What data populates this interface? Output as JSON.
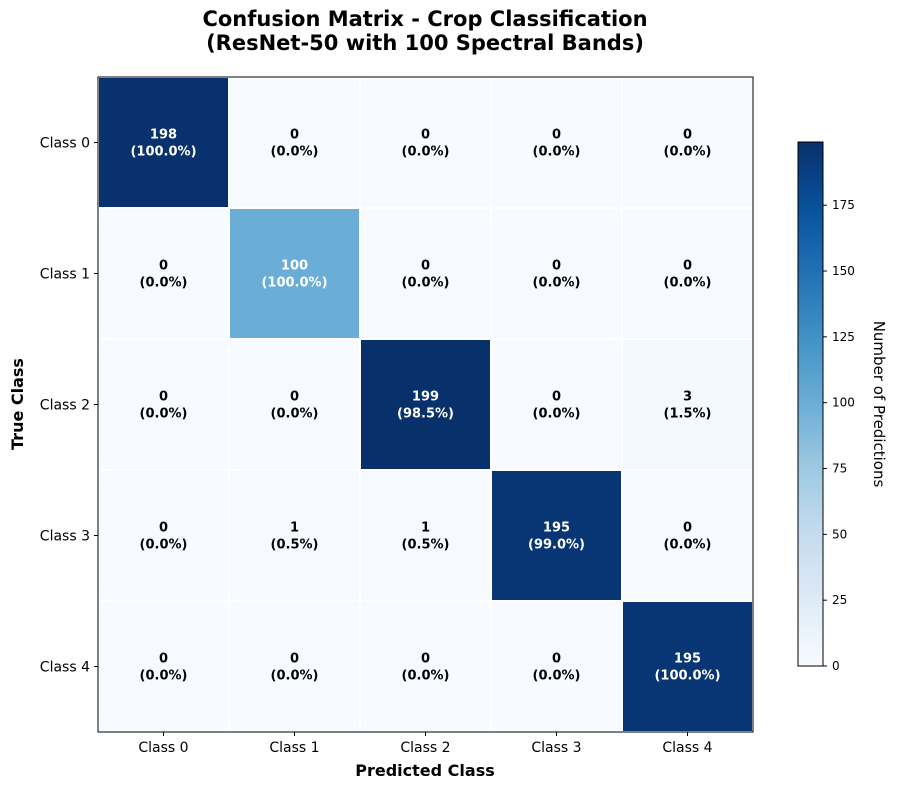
{
  "chart_data": {
    "type": "heatmap",
    "title_line1": "Confusion Matrix - Crop Classification",
    "title_line2": "(ResNet-50 with 100 Spectral Bands)",
    "xlabel": "Predicted Class",
    "ylabel": "True Class",
    "x_categories": [
      "Class 0",
      "Class 1",
      "Class 2",
      "Class 3",
      "Class 4"
    ],
    "y_categories": [
      "Class 0",
      "Class 1",
      "Class 2",
      "Class 3",
      "Class 4"
    ],
    "values": [
      [
        198,
        0,
        0,
        0,
        0
      ],
      [
        0,
        100,
        0,
        0,
        0
      ],
      [
        0,
        0,
        199,
        0,
        3
      ],
      [
        0,
        1,
        1,
        195,
        0
      ],
      [
        0,
        0,
        0,
        0,
        195
      ]
    ],
    "percentages": [
      [
        "(100.0%)",
        "(0.0%)",
        "(0.0%)",
        "(0.0%)",
        "(0.0%)"
      ],
      [
        "(0.0%)",
        "(100.0%)",
        "(0.0%)",
        "(0.0%)",
        "(0.0%)"
      ],
      [
        "(0.0%)",
        "(0.0%)",
        "(98.5%)",
        "(0.0%)",
        "(1.5%)"
      ],
      [
        "(0.0%)",
        "(0.5%)",
        "(0.5%)",
        "(99.0%)",
        "(0.0%)"
      ],
      [
        "(0.0%)",
        "(0.0%)",
        "(0.0%)",
        "(0.0%)",
        "(100.0%)"
      ]
    ],
    "colormap": "Blues",
    "colorbar": {
      "label": "Number of Predictions",
      "vmin": 0,
      "vmax": 199,
      "ticks": [
        0,
        25,
        50,
        75,
        100,
        125,
        150,
        175
      ]
    }
  }
}
